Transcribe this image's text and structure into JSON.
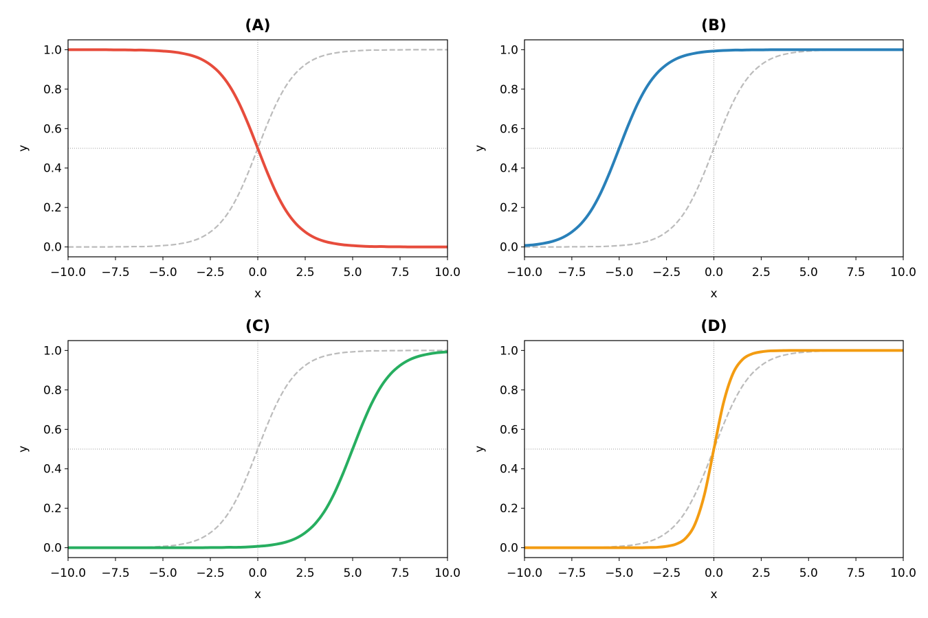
{
  "chart_data": [
    {
      "type": "line",
      "title": "(A)",
      "xlabel": "x",
      "ylabel": "y",
      "xlim": [
        -10,
        10
      ],
      "ylim": [
        -0.05,
        1.05
      ],
      "xticks": [
        "−10.0",
        "−7.5",
        "−5.0",
        "−2.5",
        "0.0",
        "2.5",
        "5.0",
        "7.5",
        "10.0"
      ],
      "yticks": [
        "0.0",
        "0.2",
        "0.4",
        "0.6",
        "0.8",
        "1.0"
      ],
      "reference_lines": {
        "x": 0,
        "y": 0.5,
        "style": "dotted"
      },
      "series": [
        {
          "style": "solid",
          "color": "#e74c3c",
          "y": [
            1,
            1,
            1,
            1,
            1,
            0.999,
            0.999,
            0.998,
            0.998,
            0.996,
            0.993,
            0.989,
            0.982,
            0.971,
            0.953,
            0.924,
            0.881,
            0.818,
            0.731,
            0.622,
            0.5,
            0.378,
            0.269,
            0.182,
            0.119,
            0.076,
            0.047,
            0.029,
            0.018,
            0.011,
            0.007,
            0.004,
            0.002,
            0.002,
            0.001,
            0.001,
            0,
            0,
            0,
            0,
            0
          ]
        },
        {
          "style": "dashed",
          "color": "#bbbbbb",
          "y": [
            0,
            0,
            0,
            0,
            0,
            0.001,
            0.001,
            0.002,
            0.002,
            0.004,
            0.007,
            0.011,
            0.018,
            0.029,
            0.047,
            0.076,
            0.119,
            0.182,
            0.269,
            0.378,
            0.5,
            0.622,
            0.731,
            0.818,
            0.881,
            0.924,
            0.953,
            0.971,
            0.982,
            0.989,
            0.993,
            0.996,
            0.998,
            0.998,
            0.999,
            0.999,
            1,
            1,
            1,
            1,
            1
          ]
        }
      ]
    },
    {
      "type": "line",
      "title": "(B)",
      "xlabel": "x",
      "ylabel": "y",
      "xlim": [
        -10,
        10
      ],
      "ylim": [
        -0.05,
        1.05
      ],
      "xticks": [
        "−10.0",
        "−7.5",
        "−5.0",
        "−2.5",
        "0.0",
        "2.5",
        "5.0",
        "7.5",
        "10.0"
      ],
      "yticks": [
        "0.0",
        "0.2",
        "0.4",
        "0.6",
        "0.8",
        "1.0"
      ],
      "reference_lines": {
        "x": 0,
        "y": 0.5,
        "style": "dotted"
      },
      "series": [
        {
          "style": "solid",
          "color": "#2980b9",
          "y": [
            0.007,
            0.011,
            0.018,
            0.029,
            0.047,
            0.076,
            0.119,
            0.182,
            0.269,
            0.378,
            0.5,
            0.622,
            0.731,
            0.818,
            0.881,
            0.924,
            0.953,
            0.971,
            0.982,
            0.989,
            0.993,
            0.996,
            0.998,
            0.998,
            0.999,
            0.999,
            1,
            1,
            1,
            1,
            1,
            1,
            1,
            1,
            1,
            1,
            1,
            1,
            1,
            1,
            1
          ]
        },
        {
          "style": "dashed",
          "color": "#bbbbbb",
          "y": [
            0,
            0,
            0,
            0,
            0,
            0.001,
            0.001,
            0.002,
            0.002,
            0.004,
            0.007,
            0.011,
            0.018,
            0.029,
            0.047,
            0.076,
            0.119,
            0.182,
            0.269,
            0.378,
            0.5,
            0.622,
            0.731,
            0.818,
            0.881,
            0.924,
            0.953,
            0.971,
            0.982,
            0.989,
            0.993,
            0.996,
            0.998,
            0.998,
            0.999,
            0.999,
            1,
            1,
            1,
            1,
            1
          ]
        }
      ]
    },
    {
      "type": "line",
      "title": "(C)",
      "xlabel": "x",
      "ylabel": "y",
      "xlim": [
        -10,
        10
      ],
      "ylim": [
        -0.05,
        1.05
      ],
      "xticks": [
        "−10.0",
        "−7.5",
        "−5.0",
        "−2.5",
        "0.0",
        "2.5",
        "5.0",
        "7.5",
        "10.0"
      ],
      "yticks": [
        "0.0",
        "0.2",
        "0.4",
        "0.6",
        "0.8",
        "1.0"
      ],
      "reference_lines": {
        "x": 0,
        "y": 0.5,
        "style": "dotted"
      },
      "series": [
        {
          "style": "solid",
          "color": "#27ae60",
          "y": [
            0,
            0,
            0,
            0,
            0,
            0,
            0,
            0,
            0,
            0,
            0,
            0,
            0,
            0,
            0,
            0.001,
            0.001,
            0.002,
            0.002,
            0.004,
            0.007,
            0.011,
            0.018,
            0.029,
            0.047,
            0.076,
            0.119,
            0.182,
            0.269,
            0.378,
            0.5,
            0.622,
            0.731,
            0.818,
            0.881,
            0.924,
            0.953,
            0.971,
            0.982,
            0.989,
            0.993
          ]
        },
        {
          "style": "dashed",
          "color": "#bbbbbb",
          "y": [
            0,
            0,
            0,
            0,
            0,
            0.001,
            0.001,
            0.002,
            0.002,
            0.004,
            0.007,
            0.011,
            0.018,
            0.029,
            0.047,
            0.076,
            0.119,
            0.182,
            0.269,
            0.378,
            0.5,
            0.622,
            0.731,
            0.818,
            0.881,
            0.924,
            0.953,
            0.971,
            0.982,
            0.989,
            0.993,
            0.996,
            0.998,
            0.998,
            0.999,
            0.999,
            1,
            1,
            1,
            1,
            1
          ]
        }
      ]
    },
    {
      "type": "line",
      "title": "(D)",
      "xlabel": "x",
      "ylabel": "y",
      "xlim": [
        -10,
        10
      ],
      "ylim": [
        -0.05,
        1.05
      ],
      "xticks": [
        "−10.0",
        "−7.5",
        "−5.0",
        "−2.5",
        "0.0",
        "2.5",
        "5.0",
        "7.5",
        "10.0"
      ],
      "yticks": [
        "0.0",
        "0.2",
        "0.4",
        "0.6",
        "0.8",
        "1.0"
      ],
      "reference_lines": {
        "x": 0,
        "y": 0.5,
        "style": "dotted"
      },
      "series": [
        {
          "style": "solid",
          "color": "#f39c12",
          "y": [
            0,
            0,
            0,
            0,
            0,
            0,
            0,
            0,
            0,
            0,
            0,
            0,
            0,
            0.001,
            0.002,
            0.007,
            0.018,
            0.047,
            0.119,
            0.269,
            0.5,
            0.731,
            0.881,
            0.953,
            0.982,
            0.993,
            0.998,
            0.999,
            1,
            1,
            1,
            1,
            1,
            1,
            1,
            1,
            1,
            1,
            1,
            1,
            1
          ]
        },
        {
          "style": "dashed",
          "color": "#bbbbbb",
          "y": [
            0,
            0,
            0,
            0,
            0,
            0.001,
            0.001,
            0.002,
            0.002,
            0.004,
            0.007,
            0.011,
            0.018,
            0.029,
            0.047,
            0.076,
            0.119,
            0.182,
            0.269,
            0.378,
            0.5,
            0.622,
            0.731,
            0.818,
            0.881,
            0.924,
            0.953,
            0.971,
            0.982,
            0.989,
            0.993,
            0.996,
            0.998,
            0.998,
            0.999,
            0.999,
            1,
            1,
            1,
            1,
            1
          ]
        }
      ]
    }
  ],
  "x_values": [
    -10,
    -9.5,
    -9,
    -8.5,
    -8,
    -7.5,
    -7,
    -6.5,
    -6,
    -5.5,
    -5,
    -4.5,
    -4,
    -3.5,
    -3,
    -2.5,
    -2,
    -1.5,
    -1,
    -0.5,
    0,
    0.5,
    1,
    1.5,
    2,
    2.5,
    3,
    3.5,
    4,
    4.5,
    5,
    5.5,
    6,
    6.5,
    7,
    7.5,
    8,
    8.5,
    9,
    9.5,
    10
  ]
}
